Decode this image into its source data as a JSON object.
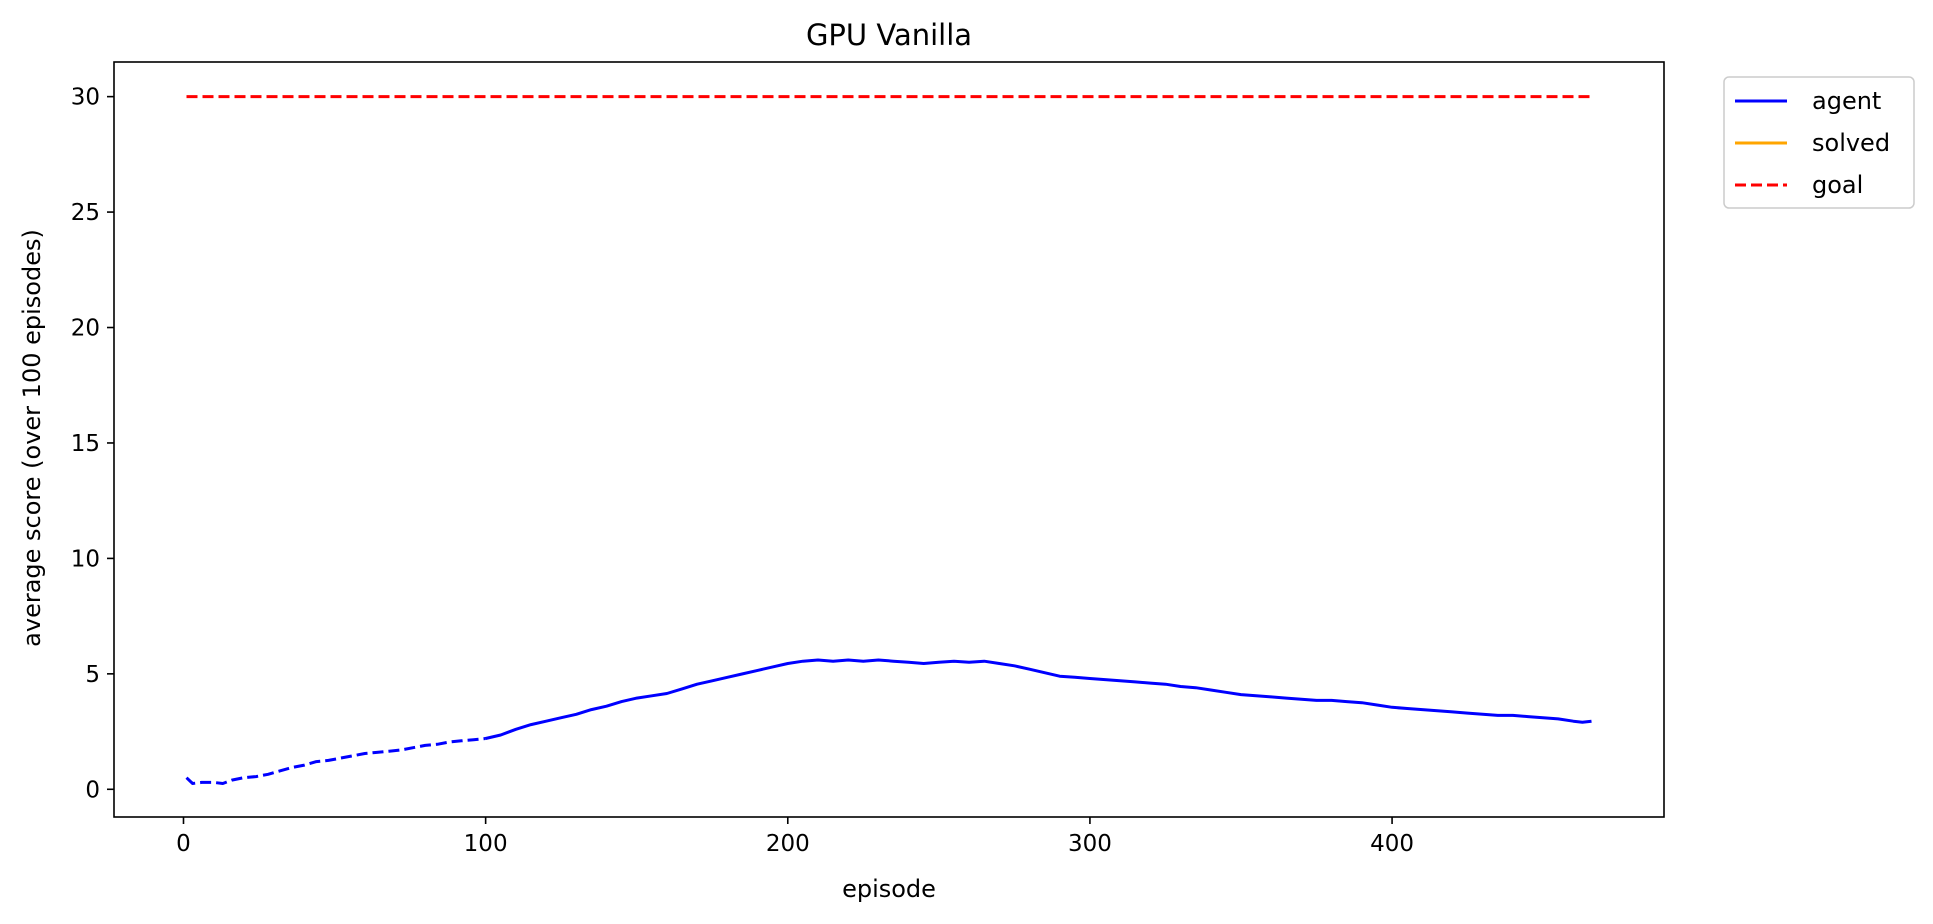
{
  "chart_data": {
    "type": "line",
    "title": "GPU Vanilla",
    "xlabel": "episode",
    "ylabel": "average score (over 100 episodes)",
    "xlim": [
      -23,
      490
    ],
    "ylim": [
      -1.2,
      31.5
    ],
    "xticks": [
      0,
      100,
      200,
      300,
      400
    ],
    "yticks": [
      0,
      5,
      10,
      15,
      20,
      25,
      30
    ],
    "grid": false,
    "legend_position": "outside upper right",
    "colors": {
      "agent": "#0000ff",
      "solved": "#ffa500",
      "goal": "#ff0000"
    },
    "series": [
      {
        "name": "agent",
        "style": "dashed",
        "points": [
          [
            1,
            0.5
          ],
          [
            3,
            0.25
          ],
          [
            6,
            0.3
          ],
          [
            10,
            0.3
          ],
          [
            13,
            0.25
          ],
          [
            16,
            0.4
          ],
          [
            20,
            0.5
          ],
          [
            24,
            0.55
          ],
          [
            28,
            0.65
          ],
          [
            32,
            0.8
          ],
          [
            36,
            0.95
          ],
          [
            40,
            1.05
          ],
          [
            44,
            1.2
          ],
          [
            48,
            1.25
          ],
          [
            52,
            1.35
          ],
          [
            56,
            1.45
          ],
          [
            60,
            1.55
          ],
          [
            64,
            1.6
          ],
          [
            68,
            1.65
          ],
          [
            72,
            1.7
          ],
          [
            76,
            1.8
          ],
          [
            80,
            1.9
          ],
          [
            84,
            1.95
          ],
          [
            88,
            2.05
          ],
          [
            92,
            2.1
          ],
          [
            96,
            2.15
          ],
          [
            100,
            2.2
          ]
        ]
      },
      {
        "name": "agent",
        "style": "solid",
        "points": [
          [
            100,
            2.2
          ],
          [
            105,
            2.35
          ],
          [
            110,
            2.6
          ],
          [
            115,
            2.8
          ],
          [
            120,
            2.95
          ],
          [
            125,
            3.1
          ],
          [
            130,
            3.25
          ],
          [
            135,
            3.45
          ],
          [
            140,
            3.6
          ],
          [
            145,
            3.8
          ],
          [
            150,
            3.95
          ],
          [
            155,
            4.05
          ],
          [
            160,
            4.15
          ],
          [
            165,
            4.35
          ],
          [
            170,
            4.55
          ],
          [
            175,
            4.7
          ],
          [
            180,
            4.85
          ],
          [
            185,
            5.0
          ],
          [
            190,
            5.15
          ],
          [
            195,
            5.3
          ],
          [
            200,
            5.45
          ],
          [
            205,
            5.55
          ],
          [
            210,
            5.6
          ],
          [
            215,
            5.55
          ],
          [
            220,
            5.6
          ],
          [
            225,
            5.55
          ],
          [
            230,
            5.6
          ],
          [
            235,
            5.55
          ],
          [
            240,
            5.5
          ],
          [
            245,
            5.45
          ],
          [
            250,
            5.5
          ],
          [
            255,
            5.55
          ],
          [
            260,
            5.5
          ],
          [
            265,
            5.55
          ],
          [
            270,
            5.45
          ],
          [
            275,
            5.35
          ],
          [
            280,
            5.2
          ],
          [
            285,
            5.05
          ],
          [
            290,
            4.9
          ],
          [
            295,
            4.85
          ],
          [
            300,
            4.8
          ],
          [
            305,
            4.75
          ],
          [
            310,
            4.7
          ],
          [
            315,
            4.65
          ],
          [
            320,
            4.6
          ],
          [
            325,
            4.55
          ],
          [
            330,
            4.45
          ],
          [
            335,
            4.4
          ],
          [
            340,
            4.3
          ],
          [
            345,
            4.2
          ],
          [
            350,
            4.1
          ],
          [
            355,
            4.05
          ],
          [
            360,
            4.0
          ],
          [
            365,
            3.95
          ],
          [
            370,
            3.9
          ],
          [
            375,
            3.85
          ],
          [
            380,
            3.85
          ],
          [
            385,
            3.8
          ],
          [
            390,
            3.75
          ],
          [
            395,
            3.65
          ],
          [
            400,
            3.55
          ],
          [
            405,
            3.5
          ],
          [
            410,
            3.45
          ],
          [
            415,
            3.4
          ],
          [
            420,
            3.35
          ],
          [
            425,
            3.3
          ],
          [
            430,
            3.25
          ],
          [
            435,
            3.2
          ],
          [
            440,
            3.2
          ],
          [
            445,
            3.15
          ],
          [
            450,
            3.1
          ],
          [
            455,
            3.05
          ],
          [
            460,
            2.95
          ],
          [
            463,
            2.9
          ],
          [
            466,
            2.95
          ]
        ]
      },
      {
        "name": "solved",
        "style": "solid",
        "points": []
      },
      {
        "name": "goal",
        "style": "dashed",
        "points": [
          [
            1,
            30
          ],
          [
            466,
            30
          ]
        ]
      }
    ],
    "legend": [
      {
        "label": "agent",
        "style": "solid",
        "color": "#0000ff"
      },
      {
        "label": "solved",
        "style": "solid",
        "color": "#ffa500"
      },
      {
        "label": "goal",
        "style": "dashed",
        "color": "#ff0000"
      }
    ]
  }
}
